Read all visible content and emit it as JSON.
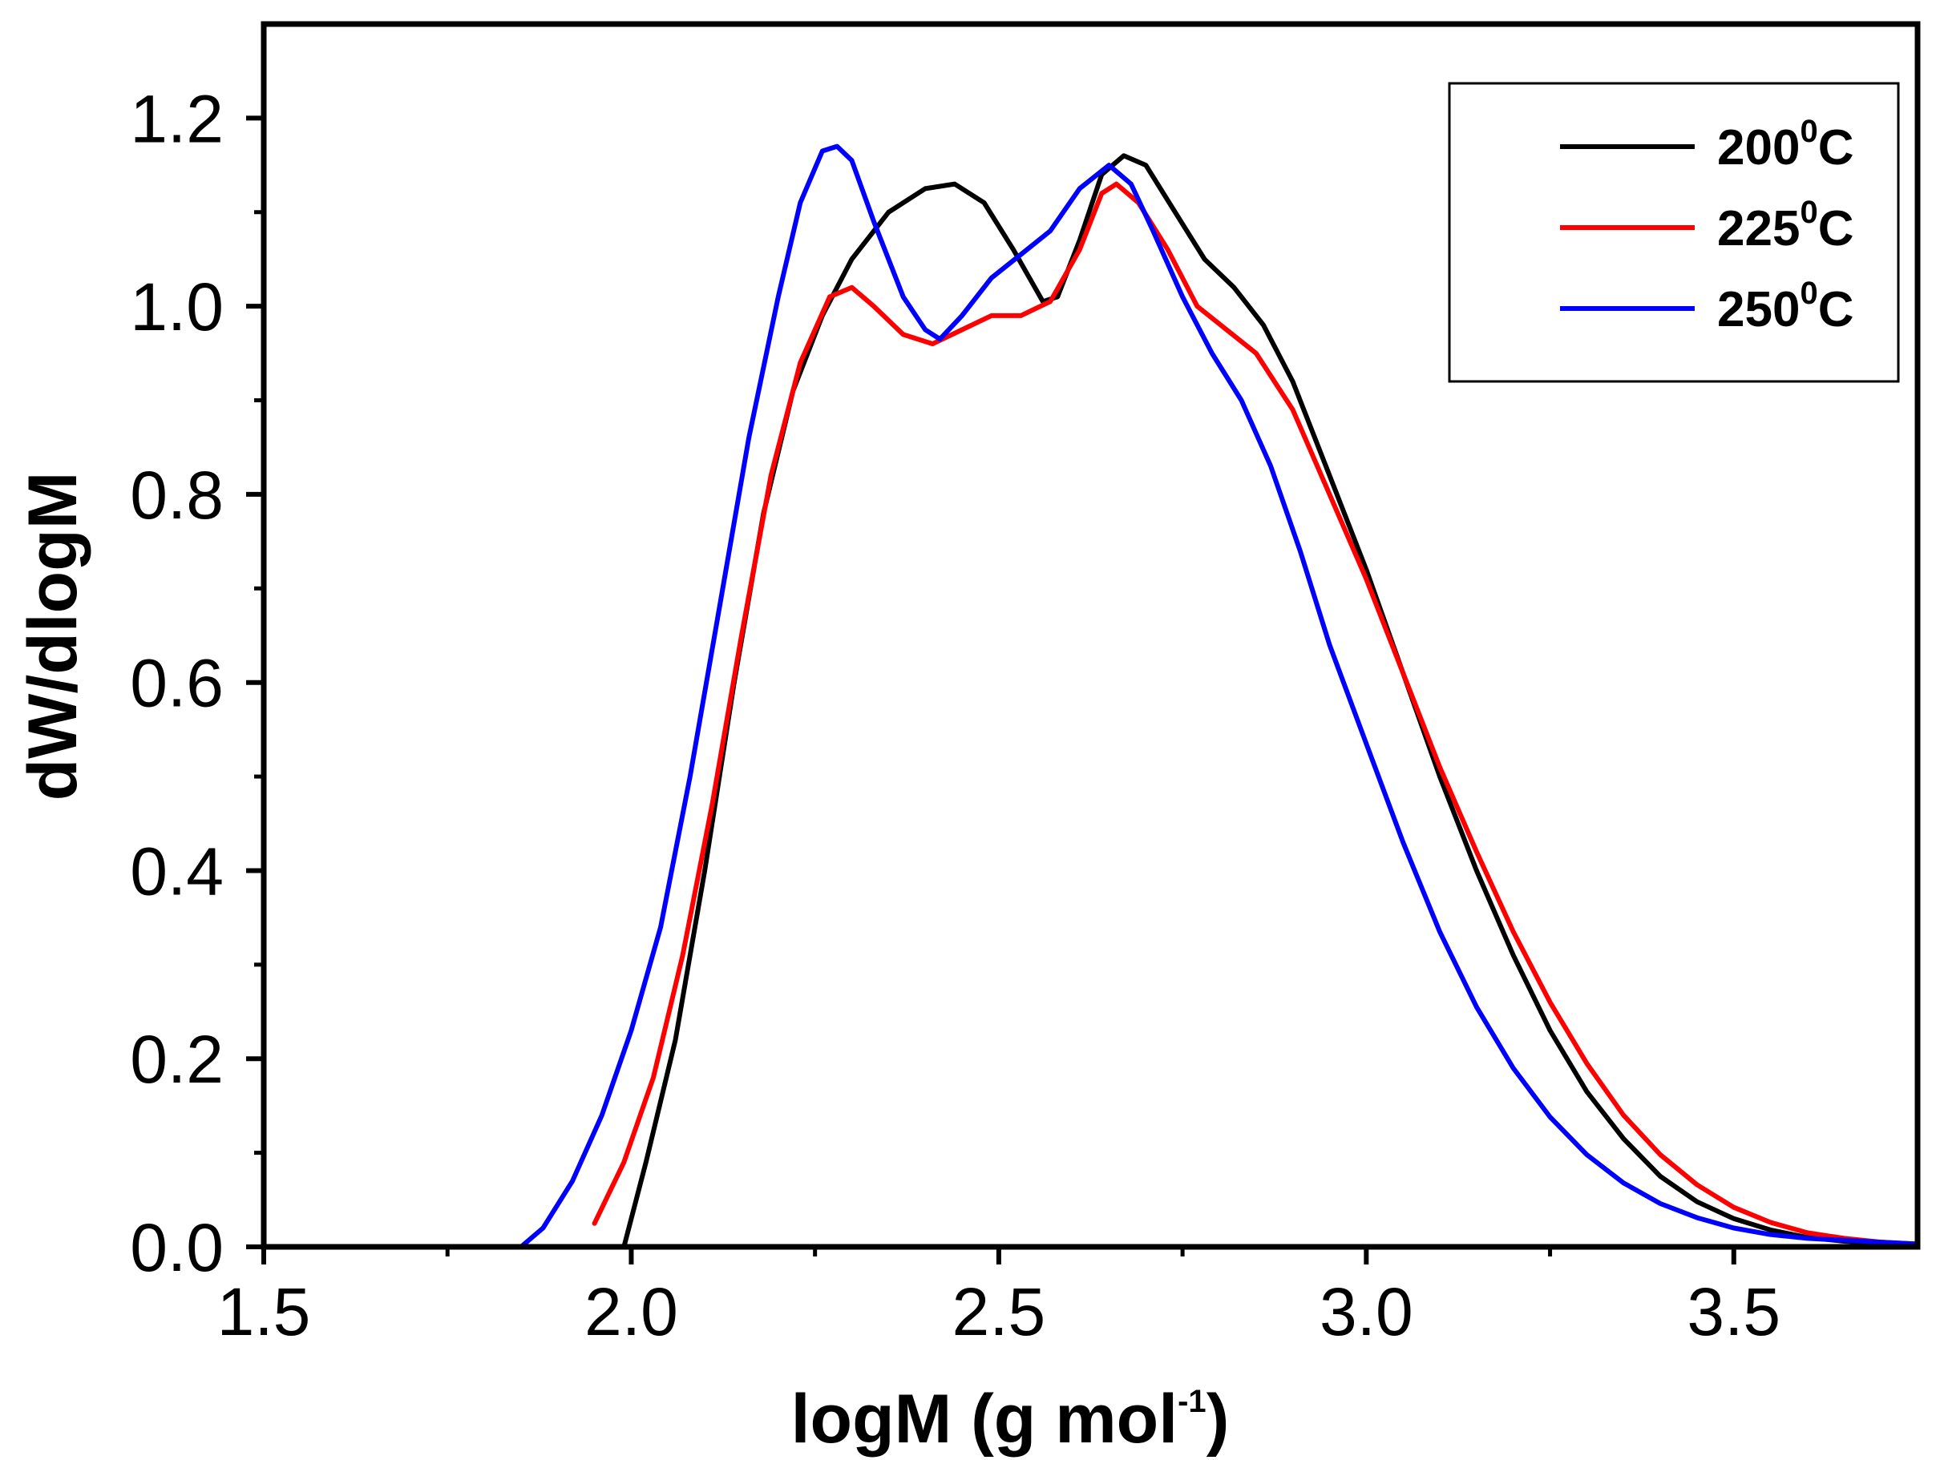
{
  "chart_data": {
    "type": "line",
    "title": "",
    "xlabel": "logM (g mol",
    "xlabel_sup": "-1",
    "xlabel_end": ")",
    "ylabel": "dW/dlogM",
    "xlim": [
      1.5,
      3.75
    ],
    "ylim": [
      0.0,
      1.3
    ],
    "xticks": [
      1.5,
      2.0,
      2.5,
      3.0,
      3.5
    ],
    "xtick_labels": [
      "1.5",
      "2.0",
      "2.5",
      "3.0",
      "3.5"
    ],
    "yticks": [
      0.0,
      0.2,
      0.4,
      0.6,
      0.8,
      1.0,
      1.2
    ],
    "ytick_labels": [
      "0.0",
      "0.2",
      "0.4",
      "0.6",
      "0.8",
      "1.0",
      "1.2"
    ],
    "grid": false,
    "legend_position": "top-right",
    "series": [
      {
        "name": "200",
        "sup": "0",
        "unit": "C",
        "color": "#000000",
        "points": [
          [
            1.99,
            0.0
          ],
          [
            2.02,
            0.09
          ],
          [
            2.06,
            0.22
          ],
          [
            2.1,
            0.4
          ],
          [
            2.14,
            0.6
          ],
          [
            2.18,
            0.78
          ],
          [
            2.22,
            0.91
          ],
          [
            2.26,
            0.99
          ],
          [
            2.3,
            1.05
          ],
          [
            2.35,
            1.1
          ],
          [
            2.4,
            1.125
          ],
          [
            2.44,
            1.13
          ],
          [
            2.48,
            1.11
          ],
          [
            2.52,
            1.06
          ],
          [
            2.56,
            1.005
          ],
          [
            2.58,
            1.01
          ],
          [
            2.61,
            1.07
          ],
          [
            2.64,
            1.14
          ],
          [
            2.67,
            1.16
          ],
          [
            2.7,
            1.15
          ],
          [
            2.74,
            1.1
          ],
          [
            2.78,
            1.05
          ],
          [
            2.82,
            1.02
          ],
          [
            2.86,
            0.98
          ],
          [
            2.9,
            0.92
          ],
          [
            2.95,
            0.82
          ],
          [
            3.0,
            0.72
          ],
          [
            3.05,
            0.61
          ],
          [
            3.1,
            0.5
          ],
          [
            3.15,
            0.4
          ],
          [
            3.2,
            0.31
          ],
          [
            3.25,
            0.23
          ],
          [
            3.3,
            0.165
          ],
          [
            3.35,
            0.115
          ],
          [
            3.4,
            0.075
          ],
          [
            3.45,
            0.048
          ],
          [
            3.5,
            0.03
          ],
          [
            3.55,
            0.018
          ],
          [
            3.6,
            0.01
          ],
          [
            3.65,
            0.006
          ],
          [
            3.7,
            0.004
          ],
          [
            3.75,
            0.002
          ]
        ]
      },
      {
        "name": "225",
        "sup": "0",
        "unit": "C",
        "color": "#ff0000",
        "points": [
          [
            1.95,
            0.025
          ],
          [
            1.99,
            0.09
          ],
          [
            2.03,
            0.18
          ],
          [
            2.07,
            0.31
          ],
          [
            2.11,
            0.47
          ],
          [
            2.15,
            0.65
          ],
          [
            2.19,
            0.82
          ],
          [
            2.23,
            0.94
          ],
          [
            2.27,
            1.01
          ],
          [
            2.3,
            1.02
          ],
          [
            2.33,
            1.0
          ],
          [
            2.37,
            0.97
          ],
          [
            2.41,
            0.96
          ],
          [
            2.45,
            0.975
          ],
          [
            2.49,
            0.99
          ],
          [
            2.53,
            0.99
          ],
          [
            2.57,
            1.005
          ],
          [
            2.61,
            1.06
          ],
          [
            2.64,
            1.12
          ],
          [
            2.66,
            1.13
          ],
          [
            2.69,
            1.11
          ],
          [
            2.73,
            1.06
          ],
          [
            2.77,
            1.0
          ],
          [
            2.81,
            0.975
          ],
          [
            2.85,
            0.95
          ],
          [
            2.9,
            0.89
          ],
          [
            2.95,
            0.8
          ],
          [
            3.0,
            0.71
          ],
          [
            3.05,
            0.61
          ],
          [
            3.1,
            0.51
          ],
          [
            3.15,
            0.42
          ],
          [
            3.2,
            0.335
          ],
          [
            3.25,
            0.26
          ],
          [
            3.3,
            0.195
          ],
          [
            3.35,
            0.14
          ],
          [
            3.4,
            0.098
          ],
          [
            3.45,
            0.066
          ],
          [
            3.5,
            0.042
          ],
          [
            3.55,
            0.026
          ],
          [
            3.6,
            0.015
          ],
          [
            3.65,
            0.009
          ],
          [
            3.7,
            0.005
          ],
          [
            3.75,
            0.003
          ]
        ]
      },
      {
        "name": "250",
        "sup": "0",
        "unit": "C",
        "color": "#0000ff",
        "points": [
          [
            1.85,
            0.0
          ],
          [
            1.88,
            0.02
          ],
          [
            1.92,
            0.07
          ],
          [
            1.96,
            0.14
          ],
          [
            2.0,
            0.23
          ],
          [
            2.04,
            0.34
          ],
          [
            2.08,
            0.5
          ],
          [
            2.12,
            0.68
          ],
          [
            2.16,
            0.86
          ],
          [
            2.2,
            1.01
          ],
          [
            2.23,
            1.11
          ],
          [
            2.26,
            1.165
          ],
          [
            2.28,
            1.17
          ],
          [
            2.3,
            1.155
          ],
          [
            2.33,
            1.09
          ],
          [
            2.37,
            1.01
          ],
          [
            2.4,
            0.975
          ],
          [
            2.42,
            0.965
          ],
          [
            2.45,
            0.99
          ],
          [
            2.49,
            1.03
          ],
          [
            2.53,
            1.055
          ],
          [
            2.57,
            1.08
          ],
          [
            2.61,
            1.125
          ],
          [
            2.65,
            1.15
          ],
          [
            2.68,
            1.13
          ],
          [
            2.71,
            1.08
          ],
          [
            2.75,
            1.01
          ],
          [
            2.79,
            0.95
          ],
          [
            2.83,
            0.9
          ],
          [
            2.87,
            0.83
          ],
          [
            2.91,
            0.74
          ],
          [
            2.95,
            0.64
          ],
          [
            3.0,
            0.535
          ],
          [
            3.05,
            0.43
          ],
          [
            3.1,
            0.335
          ],
          [
            3.15,
            0.255
          ],
          [
            3.2,
            0.19
          ],
          [
            3.25,
            0.138
          ],
          [
            3.3,
            0.098
          ],
          [
            3.35,
            0.068
          ],
          [
            3.4,
            0.046
          ],
          [
            3.45,
            0.031
          ],
          [
            3.5,
            0.02
          ],
          [
            3.55,
            0.013
          ],
          [
            3.6,
            0.009
          ],
          [
            3.65,
            0.007
          ],
          [
            3.7,
            0.005
          ],
          [
            3.75,
            0.003
          ]
        ]
      }
    ]
  }
}
